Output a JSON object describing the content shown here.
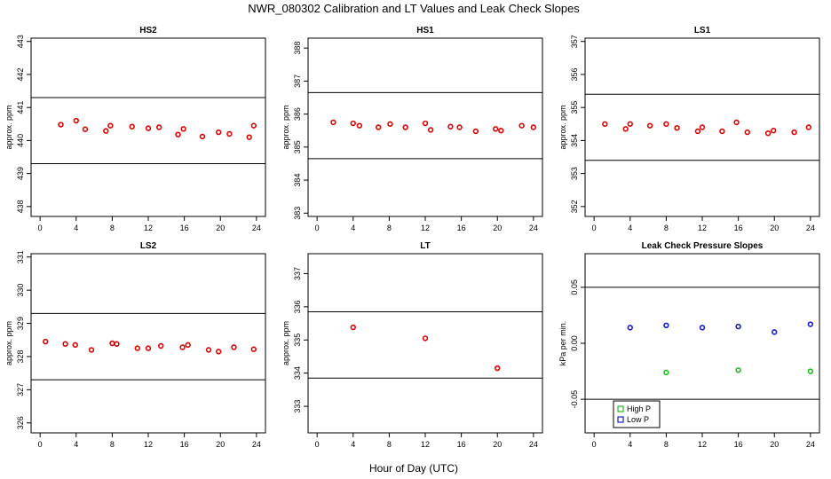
{
  "figure": {
    "title": "NWR_080302  Calibration and LT Values and Leak Check Slopes",
    "xlabel": "Hour of Day (UTC)"
  },
  "chart_data": [
    {
      "id": "hs2",
      "type": "scatter",
      "title": "HS2",
      "ylabel": "approx. ppm",
      "xlim": [
        -1,
        25
      ],
      "ylim": [
        437.7,
        443.1
      ],
      "xticks": [
        0,
        4,
        8,
        12,
        16,
        20,
        24
      ],
      "yticks": [
        438,
        439,
        440,
        441,
        442,
        443
      ],
      "hlines": [
        441.3,
        439.3
      ],
      "series": [
        {
          "name": "calibration",
          "color": "#dd0000",
          "marker": "circle",
          "x": [
            2.3,
            4.0,
            5.0,
            7.3,
            7.8,
            10.2,
            12.0,
            13.2,
            15.3,
            15.9,
            18.0,
            19.8,
            21.0,
            23.2,
            23.7
          ],
          "y": [
            440.48,
            440.6,
            440.34,
            440.29,
            440.45,
            440.42,
            440.37,
            440.4,
            440.18,
            440.35,
            440.12,
            440.25,
            440.2,
            440.1,
            440.45
          ]
        }
      ]
    },
    {
      "id": "hs1",
      "type": "scatter",
      "title": "HS1",
      "ylabel": "approx. ppm",
      "xlim": [
        -1,
        25
      ],
      "ylim": [
        382.9,
        388.3
      ],
      "xticks": [
        0,
        4,
        8,
        12,
        16,
        20,
        24
      ],
      "yticks": [
        383,
        384,
        385,
        386,
        387,
        388
      ],
      "hlines": [
        386.65,
        384.65
      ],
      "series": [
        {
          "name": "calibration",
          "color": "#dd0000",
          "marker": "circle",
          "x": [
            1.8,
            4.0,
            4.7,
            6.8,
            8.1,
            9.8,
            12.0,
            12.6,
            14.8,
            15.8,
            17.6,
            19.8,
            20.4,
            22.7,
            24.0
          ],
          "y": [
            385.75,
            385.72,
            385.65,
            385.6,
            385.7,
            385.6,
            385.72,
            385.52,
            385.62,
            385.6,
            385.48,
            385.55,
            385.5,
            385.65,
            385.6
          ]
        }
      ]
    },
    {
      "id": "ls1",
      "type": "scatter",
      "title": "LS1",
      "ylabel": "approx. ppm",
      "xlim": [
        -1,
        25
      ],
      "ylim": [
        351.7,
        357.1
      ],
      "xticks": [
        0,
        4,
        8,
        12,
        16,
        20,
        24
      ],
      "yticks": [
        352,
        353,
        354,
        355,
        356,
        357
      ],
      "hlines": [
        355.4,
        353.4
      ],
      "series": [
        {
          "name": "calibration",
          "color": "#dd0000",
          "marker": "circle",
          "x": [
            1.2,
            3.5,
            4.0,
            6.2,
            8.0,
            9.2,
            11.5,
            12.0,
            14.2,
            15.8,
            17.0,
            19.3,
            19.9,
            22.2,
            23.8
          ],
          "y": [
            354.5,
            354.35,
            354.5,
            354.45,
            354.5,
            354.38,
            354.28,
            354.4,
            354.28,
            354.55,
            354.25,
            354.22,
            354.3,
            354.25,
            354.4
          ]
        }
      ]
    },
    {
      "id": "ls2",
      "type": "scatter",
      "title": "LS2",
      "ylabel": "approx. ppm",
      "xlim": [
        -1,
        25
      ],
      "ylim": [
        325.7,
        331.1
      ],
      "xticks": [
        0,
        4,
        8,
        12,
        16,
        20,
        24
      ],
      "yticks": [
        326,
        327,
        328,
        329,
        330,
        331
      ],
      "hlines": [
        329.3,
        327.3
      ],
      "series": [
        {
          "name": "calibration",
          "color": "#dd0000",
          "marker": "circle",
          "x": [
            0.6,
            2.8,
            3.9,
            5.7,
            8.0,
            8.5,
            10.8,
            12.0,
            13.4,
            15.8,
            16.4,
            18.7,
            19.8,
            21.5,
            23.7
          ],
          "y": [
            328.45,
            328.38,
            328.35,
            328.2,
            328.4,
            328.38,
            328.25,
            328.25,
            328.32,
            328.28,
            328.35,
            328.2,
            328.15,
            328.28,
            328.22
          ]
        }
      ]
    },
    {
      "id": "lt",
      "type": "scatter",
      "title": "LT",
      "ylabel": "approx. ppm",
      "xlim": [
        -1,
        25
      ],
      "ylim": [
        332.2,
        337.6
      ],
      "xticks": [
        0,
        4,
        8,
        12,
        16,
        20,
        24
      ],
      "yticks": [
        333,
        334,
        335,
        336,
        337
      ],
      "hlines": [
        335.85,
        333.85
      ],
      "series": [
        {
          "name": "LT",
          "color": "#dd0000",
          "marker": "circle",
          "x": [
            4.0,
            12.0,
            20.0
          ],
          "y": [
            335.38,
            335.05,
            334.15
          ]
        }
      ]
    },
    {
      "id": "leak",
      "type": "scatter",
      "title": "Leak Check Pressure Slopes",
      "ylabel": "kPa per min.",
      "xlim": [
        -1,
        25
      ],
      "ylim": [
        -0.08,
        0.08
      ],
      "xticks": [
        0,
        4,
        8,
        12,
        16,
        20,
        24
      ],
      "yticks": [
        -0.05,
        0.0,
        0.05
      ],
      "ytick_labels": [
        "-0.05",
        "0.00",
        "0.05"
      ],
      "hlines": [
        0.05,
        -0.05
      ],
      "legend": {
        "position": "bottom-left",
        "entries": [
          "High P",
          "Low P"
        ]
      },
      "series": [
        {
          "name": "High P",
          "color": "#22bb22",
          "marker": "circle",
          "x": [
            8.0,
            16.0,
            24.0
          ],
          "y": [
            -0.026,
            -0.024,
            -0.025
          ]
        },
        {
          "name": "Low P",
          "color": "#1a1acc",
          "marker": "circle",
          "x": [
            4.0,
            8.0,
            12.0,
            16.0,
            20.0,
            24.0
          ],
          "y": [
            0.014,
            0.016,
            0.014,
            0.015,
            0.01,
            0.017
          ]
        }
      ]
    }
  ]
}
